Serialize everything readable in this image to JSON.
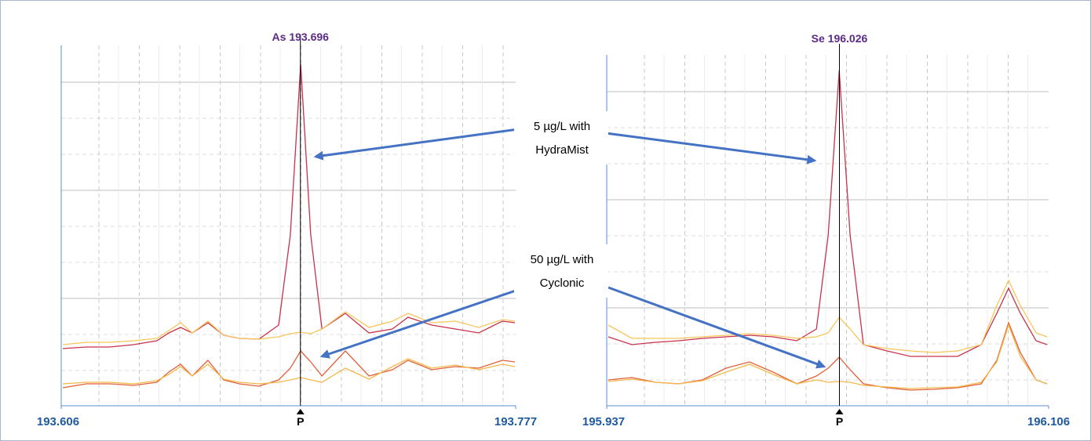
{
  "chart_data": [
    {
      "type": "line",
      "title": "As 193.696",
      "marker": "P",
      "peak_x": 193.696,
      "xlim": [
        193.606,
        193.777
      ],
      "xticks": [
        193.606,
        193.777
      ],
      "ylim": [
        0,
        460
      ],
      "x": [
        193.6066,
        193.6155,
        193.6243,
        193.6332,
        193.642,
        193.6465,
        193.6509,
        193.6553,
        193.6612,
        193.6671,
        193.673,
        193.6804,
        193.6878,
        193.6922,
        193.6961,
        193.6999,
        193.7041,
        193.7129,
        193.7218,
        193.7306,
        193.7365,
        193.7454,
        193.7543,
        193.7631,
        193.772,
        193.7767
      ],
      "series": [
        {
          "color": "#c8324b",
          "values": [
            73,
            75,
            75,
            78,
            83,
            93,
            100,
            93,
            106,
            90,
            86,
            85,
            103,
            218,
            436,
            218,
            98,
            118,
            93,
            98,
            113,
            103,
            98,
            93,
            108,
            106
          ]
        },
        {
          "color": "#f7c65a",
          "values": [
            78,
            81,
            81,
            83,
            86,
            96,
            106,
            93,
            108,
            90,
            86,
            85,
            88,
            92,
            94,
            92,
            98,
            120,
            100,
            108,
            118,
            106,
            108,
            100,
            110,
            108
          ]
        },
        {
          "color": "#e0603a",
          "values": [
            23,
            28,
            28,
            26,
            30,
            43,
            53,
            38,
            58,
            33,
            28,
            25,
            33,
            48,
            70,
            56,
            38,
            70,
            38,
            46,
            58,
            46,
            50,
            48,
            58,
            56
          ]
        },
        {
          "color": "#f4b84a",
          "values": [
            28,
            30,
            30,
            28,
            32,
            40,
            50,
            38,
            53,
            34,
            30,
            28,
            30,
            33,
            36,
            33,
            30,
            48,
            34,
            50,
            60,
            48,
            52,
            46,
            53,
            50
          ]
        }
      ]
    },
    {
      "type": "line",
      "title": "Se 196.026",
      "marker": "P",
      "peak_x": 196.026,
      "xlim": [
        195.937,
        196.106
      ],
      "xticks": [
        195.937,
        196.106
      ],
      "ylim": [
        0,
        448
      ],
      "x": [
        195.9376,
        195.9466,
        195.9556,
        195.9646,
        195.9736,
        195.9826,
        195.9916,
        196.0006,
        196.0097,
        196.0172,
        196.0217,
        196.0259,
        196.0301,
        196.0352,
        196.0442,
        196.0532,
        196.0622,
        196.0712,
        196.0802,
        196.0862,
        196.0907,
        196.0952,
        196.1012,
        196.1054
      ],
      "series": [
        {
          "color": "#c8324b",
          "values": [
            88,
            78,
            81,
            83,
            86,
            88,
            90,
            88,
            83,
            98,
            218,
            428,
            218,
            78,
            70,
            63,
            63,
            63,
            78,
            118,
            150,
            118,
            83,
            78
          ]
        },
        {
          "color": "#f7c65a",
          "values": [
            103,
            86,
            86,
            86,
            88,
            90,
            92,
            90,
            86,
            88,
            93,
            113,
            98,
            78,
            73,
            70,
            68,
            70,
            78,
            128,
            160,
            128,
            93,
            88
          ]
        },
        {
          "color": "#e0603a",
          "values": [
            33,
            36,
            30,
            28,
            33,
            48,
            56,
            43,
            28,
            38,
            48,
            62,
            46,
            28,
            23,
            20,
            21,
            23,
            28,
            58,
            106,
            68,
            33,
            28
          ]
        },
        {
          "color": "#f4b84a",
          "values": [
            31,
            34,
            30,
            28,
            32,
            43,
            53,
            40,
            28,
            33,
            30,
            31,
            30,
            26,
            24,
            22,
            23,
            24,
            30,
            56,
            103,
            63,
            33,
            28
          ]
        }
      ]
    }
  ],
  "annotations": [
    {
      "lines": [
        "5 µg/L with",
        "HydraMist"
      ]
    },
    {
      "lines": [
        "50 µg/L with",
        "Cyclonic"
      ]
    }
  ]
}
